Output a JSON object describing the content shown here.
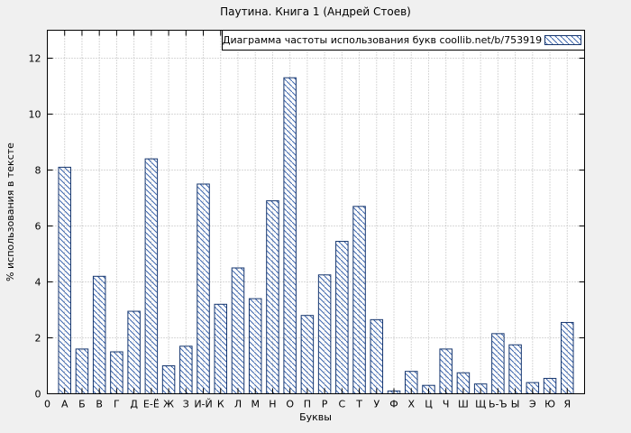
{
  "chart_data": {
    "type": "bar",
    "title": "Паутина. Книга 1 (Андрей Стоев)",
    "legend": "Диаграмма частоты использования букв coollib.net/b/753919",
    "xlabel": "Буквы",
    "ylabel": "% использования в тексте",
    "origin_tick_label": "0",
    "categories": [
      "А",
      "Б",
      "В",
      "Г",
      "Д",
      "Е-Ё",
      "Ж",
      "З",
      "И-Й",
      "К",
      "Л",
      "М",
      "Н",
      "О",
      "П",
      "Р",
      "С",
      "Т",
      "У",
      "Ф",
      "Х",
      "Ц",
      "Ч",
      "Ш",
      "Щ",
      "Ь-Ъ",
      "Ы",
      "Э",
      "Ю",
      "Я"
    ],
    "values": [
      8.1,
      1.6,
      4.2,
      1.5,
      2.95,
      8.4,
      1.0,
      1.7,
      7.5,
      3.2,
      4.5,
      3.4,
      6.9,
      11.3,
      2.8,
      4.25,
      5.45,
      6.7,
      2.65,
      0.1,
      0.8,
      0.3,
      1.6,
      0.75,
      0.35,
      2.15,
      1.75,
      0.4,
      0.55,
      2.55
    ],
    "yticks": [
      0,
      2,
      4,
      6,
      8,
      10,
      12
    ],
    "ylim": [
      0,
      13
    ],
    "grid": true,
    "legend_position": "top-right-inside",
    "colors": {
      "background": "#f0f0f0",
      "plot_background": "#ffffff",
      "bar_border": "#16366e",
      "bar_hatch": "#3a64ad",
      "grid": "#b0b0b0"
    }
  }
}
